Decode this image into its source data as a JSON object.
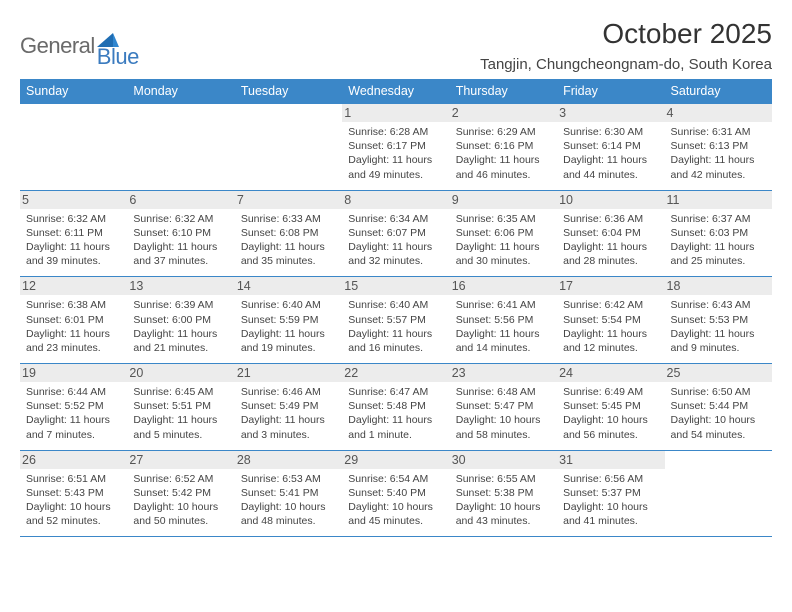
{
  "logo": {
    "part1": "General",
    "part2": "Blue"
  },
  "title": "October 2025",
  "location": "Tangjin, Chungcheongnam-do, South Korea",
  "colors": {
    "header_bg": "#3b87c8",
    "border": "#3b87c8",
    "daynum_bg": "#ececec",
    "logo_gray": "#6a6a6a",
    "logo_blue": "#3b7bbf"
  },
  "day_headers": [
    "Sunday",
    "Monday",
    "Tuesday",
    "Wednesday",
    "Thursday",
    "Friday",
    "Saturday"
  ],
  "weeks": [
    [
      {
        "n": "",
        "sr": "",
        "ss": "",
        "dl": ""
      },
      {
        "n": "",
        "sr": "",
        "ss": "",
        "dl": ""
      },
      {
        "n": "",
        "sr": "",
        "ss": "",
        "dl": ""
      },
      {
        "n": "1",
        "sr": "6:28 AM",
        "ss": "6:17 PM",
        "dl": "11 hours and 49 minutes."
      },
      {
        "n": "2",
        "sr": "6:29 AM",
        "ss": "6:16 PM",
        "dl": "11 hours and 46 minutes."
      },
      {
        "n": "3",
        "sr": "6:30 AM",
        "ss": "6:14 PM",
        "dl": "11 hours and 44 minutes."
      },
      {
        "n": "4",
        "sr": "6:31 AM",
        "ss": "6:13 PM",
        "dl": "11 hours and 42 minutes."
      }
    ],
    [
      {
        "n": "5",
        "sr": "6:32 AM",
        "ss": "6:11 PM",
        "dl": "11 hours and 39 minutes."
      },
      {
        "n": "6",
        "sr": "6:32 AM",
        "ss": "6:10 PM",
        "dl": "11 hours and 37 minutes."
      },
      {
        "n": "7",
        "sr": "6:33 AM",
        "ss": "6:08 PM",
        "dl": "11 hours and 35 minutes."
      },
      {
        "n": "8",
        "sr": "6:34 AM",
        "ss": "6:07 PM",
        "dl": "11 hours and 32 minutes."
      },
      {
        "n": "9",
        "sr": "6:35 AM",
        "ss": "6:06 PM",
        "dl": "11 hours and 30 minutes."
      },
      {
        "n": "10",
        "sr": "6:36 AM",
        "ss": "6:04 PM",
        "dl": "11 hours and 28 minutes."
      },
      {
        "n": "11",
        "sr": "6:37 AM",
        "ss": "6:03 PM",
        "dl": "11 hours and 25 minutes."
      }
    ],
    [
      {
        "n": "12",
        "sr": "6:38 AM",
        "ss": "6:01 PM",
        "dl": "11 hours and 23 minutes."
      },
      {
        "n": "13",
        "sr": "6:39 AM",
        "ss": "6:00 PM",
        "dl": "11 hours and 21 minutes."
      },
      {
        "n": "14",
        "sr": "6:40 AM",
        "ss": "5:59 PM",
        "dl": "11 hours and 19 minutes."
      },
      {
        "n": "15",
        "sr": "6:40 AM",
        "ss": "5:57 PM",
        "dl": "11 hours and 16 minutes."
      },
      {
        "n": "16",
        "sr": "6:41 AM",
        "ss": "5:56 PM",
        "dl": "11 hours and 14 minutes."
      },
      {
        "n": "17",
        "sr": "6:42 AM",
        "ss": "5:54 PM",
        "dl": "11 hours and 12 minutes."
      },
      {
        "n": "18",
        "sr": "6:43 AM",
        "ss": "5:53 PM",
        "dl": "11 hours and 9 minutes."
      }
    ],
    [
      {
        "n": "19",
        "sr": "6:44 AM",
        "ss": "5:52 PM",
        "dl": "11 hours and 7 minutes."
      },
      {
        "n": "20",
        "sr": "6:45 AM",
        "ss": "5:51 PM",
        "dl": "11 hours and 5 minutes."
      },
      {
        "n": "21",
        "sr": "6:46 AM",
        "ss": "5:49 PM",
        "dl": "11 hours and 3 minutes."
      },
      {
        "n": "22",
        "sr": "6:47 AM",
        "ss": "5:48 PM",
        "dl": "11 hours and 1 minute."
      },
      {
        "n": "23",
        "sr": "6:48 AM",
        "ss": "5:47 PM",
        "dl": "10 hours and 58 minutes."
      },
      {
        "n": "24",
        "sr": "6:49 AM",
        "ss": "5:45 PM",
        "dl": "10 hours and 56 minutes."
      },
      {
        "n": "25",
        "sr": "6:50 AM",
        "ss": "5:44 PM",
        "dl": "10 hours and 54 minutes."
      }
    ],
    [
      {
        "n": "26",
        "sr": "6:51 AM",
        "ss": "5:43 PM",
        "dl": "10 hours and 52 minutes."
      },
      {
        "n": "27",
        "sr": "6:52 AM",
        "ss": "5:42 PM",
        "dl": "10 hours and 50 minutes."
      },
      {
        "n": "28",
        "sr": "6:53 AM",
        "ss": "5:41 PM",
        "dl": "10 hours and 48 minutes."
      },
      {
        "n": "29",
        "sr": "6:54 AM",
        "ss": "5:40 PM",
        "dl": "10 hours and 45 minutes."
      },
      {
        "n": "30",
        "sr": "6:55 AM",
        "ss": "5:38 PM",
        "dl": "10 hours and 43 minutes."
      },
      {
        "n": "31",
        "sr": "6:56 AM",
        "ss": "5:37 PM",
        "dl": "10 hours and 41 minutes."
      },
      {
        "n": "",
        "sr": "",
        "ss": "",
        "dl": ""
      }
    ]
  ],
  "labels": {
    "sunrise": "Sunrise:",
    "sunset": "Sunset:",
    "daylight": "Daylight:"
  }
}
